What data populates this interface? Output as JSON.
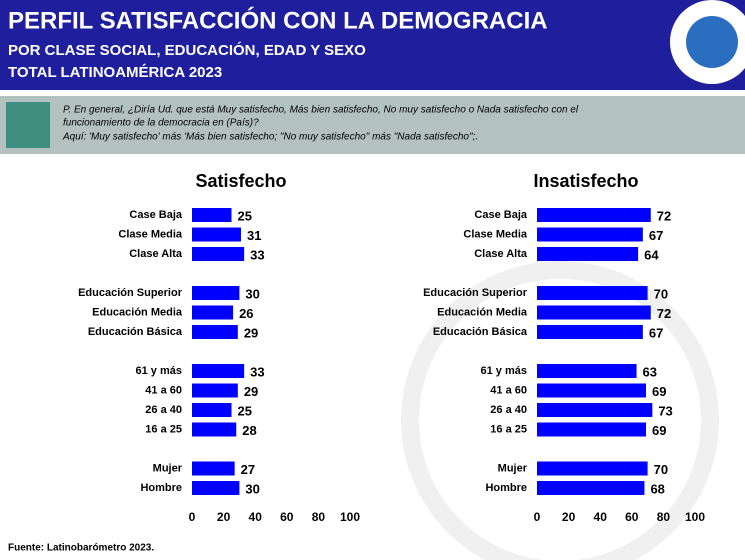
{
  "header": {
    "title": "PERFIL SATISFACCIÓN CON LA DEMOGRACIA",
    "subtitle": "POR CLASE SOCIAL, EDUCACIÓN, EDAD Y SEXO",
    "scope": "TOTAL LATINOAMÉRICA 2023"
  },
  "question": [
    "P. En general, ¿Diría Ud. que está Muy satisfecho, Más bien satisfecho, No muy satisfecho o Nada satisfecho con el",
    "funcionamiento de la democracia en (País)?",
    "Aquí: 'Muy satisfecho' más 'Más bien satisfecho; \"No muy satisfecho\" más \"Nada satisfecho\";."
  ],
  "source": "Fuente: Latinobarómetro 2023.",
  "chart_data": [
    {
      "type": "hbar",
      "title": "Satisfecho",
      "color": "#0000ff",
      "categories": [
        "Case Baja",
        "Clase Media",
        "Clase Alta",
        null,
        "Educación Superior",
        "Educación Media",
        "Educación Básica",
        null,
        "61 y más",
        "41 a 60",
        "26 a 40",
        "16 a 25",
        null,
        "Mujer",
        "Hombre"
      ],
      "values": [
        25,
        31,
        33,
        null,
        30,
        26,
        29,
        null,
        33,
        29,
        25,
        28,
        null,
        27,
        30
      ],
      "xlim": [
        0,
        100
      ],
      "xticks": [
        0,
        20,
        40,
        60,
        80,
        100
      ]
    },
    {
      "type": "hbar",
      "title": "Insatisfecho",
      "color": "#0000ff",
      "categories": [
        "Case Baja",
        "Clase Media",
        "Clase Alta",
        null,
        "Educación Superior",
        "Educación Media",
        "Educación Básica",
        null,
        "61 y más",
        "41 a 60",
        "26 a 40",
        "16 a 25",
        null,
        "Mujer",
        "Hombre"
      ],
      "values": [
        72,
        67,
        64,
        null,
        70,
        72,
        67,
        null,
        63,
        69,
        73,
        69,
        null,
        70,
        68
      ],
      "xlim": [
        0,
        100
      ],
      "xticks": [
        0,
        20,
        40,
        60,
        80,
        100
      ]
    }
  ]
}
